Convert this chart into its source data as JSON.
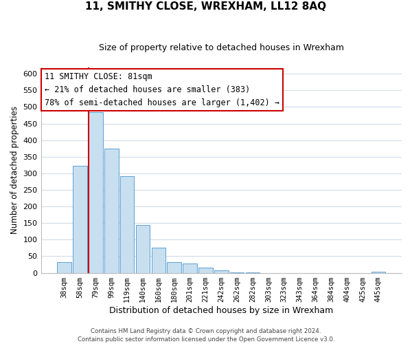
{
  "title": "11, SMITHY CLOSE, WREXHAM, LL12 8AQ",
  "subtitle": "Size of property relative to detached houses in Wrexham",
  "xlabel": "Distribution of detached houses by size in Wrexham",
  "ylabel": "Number of detached properties",
  "bar_labels": [
    "38sqm",
    "58sqm",
    "79sqm",
    "99sqm",
    "119sqm",
    "140sqm",
    "160sqm",
    "180sqm",
    "201sqm",
    "221sqm",
    "242sqm",
    "262sqm",
    "282sqm",
    "303sqm",
    "323sqm",
    "343sqm",
    "364sqm",
    "384sqm",
    "404sqm",
    "425sqm",
    "445sqm"
  ],
  "bar_values": [
    32,
    322,
    484,
    374,
    291,
    144,
    75,
    32,
    29,
    16,
    7,
    2,
    1,
    0,
    0,
    0,
    0,
    0,
    0,
    0,
    3
  ],
  "bar_color": "#c8dff0",
  "bar_edge_color": "#5aa0d0",
  "highlight_index": 2,
  "highlight_line_color": "#cc0000",
  "annotation_title": "11 SMITHY CLOSE: 81sqm",
  "annotation_line1": "← 21% of detached houses are smaller (383)",
  "annotation_line2": "78% of semi-detached houses are larger (1,402) →",
  "annotation_box_color": "#ffffff",
  "annotation_box_edge": "#cc0000",
  "ylim": [
    0,
    620
  ],
  "yticks": [
    0,
    50,
    100,
    150,
    200,
    250,
    300,
    350,
    400,
    450,
    500,
    550,
    600
  ],
  "footer_line1": "Contains HM Land Registry data © Crown copyright and database right 2024.",
  "footer_line2": "Contains public sector information licensed under the Open Government Licence v3.0.",
  "background_color": "#ffffff",
  "grid_color": "#d0dce8"
}
